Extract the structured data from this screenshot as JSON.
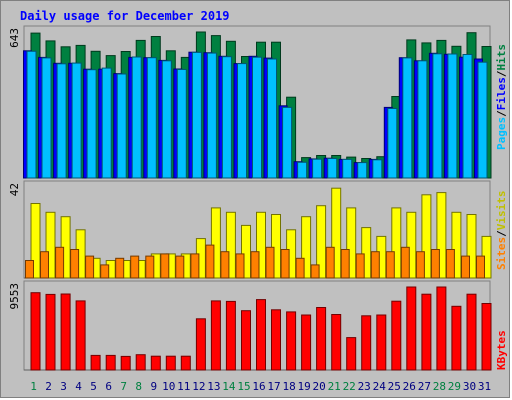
{
  "chart_data": {
    "type": "bar",
    "title": "Daily usage for December 2019",
    "categories": [
      "1",
      "2",
      "3",
      "4",
      "5",
      "6",
      "7",
      "8",
      "9",
      "10",
      "11",
      "12",
      "13",
      "14",
      "15",
      "16",
      "17",
      "18",
      "19",
      "20",
      "21",
      "22",
      "23",
      "24",
      "25",
      "26",
      "27",
      "28",
      "29",
      "30",
      "31"
    ],
    "weekend_days": [
      "1",
      "7",
      "8",
      "14",
      "15",
      "21",
      "22",
      "28",
      "29"
    ],
    "panels": [
      {
        "name": "hits-files-pages",
        "max_label": "643",
        "ylim": [
          0,
          643
        ],
        "side_labels": [
          "Pages",
          "Files",
          "Hits"
        ],
        "series": [
          {
            "name": "Hits",
            "color": "#008040",
            "values": [
              638,
              604,
              578,
              584,
              558,
              539,
              557,
              606,
              623,
              560,
              531,
              643,
              627,
              602,
              535,
              598,
              598,
              356,
              90,
              99,
              99,
              92,
              86,
              94,
              359,
              608,
              595,
              606,
              580,
              640,
              579
            ]
          },
          {
            "name": "Files",
            "color": "#0000ff",
            "values": [
              560,
              531,
              505,
              505,
              479,
              479,
              460,
              531,
              530,
              518,
              480,
              554,
              552,
              536,
              504,
              536,
              528,
              318,
              72,
              84,
              87,
              82,
              68,
              82,
              311,
              530,
              516,
              549,
              545,
              532,
              524
            ]
          },
          {
            "name": "Pages",
            "color": "#00c0ff",
            "values": [
              558,
              529,
              503,
              506,
              477,
              484,
              458,
              533,
              530,
              516,
              478,
              553,
              550,
              534,
              504,
              532,
              524,
              311,
              69,
              83,
              86,
              82,
              68,
              80,
              306,
              529,
              516,
              547,
              546,
              544,
              510
            ]
          }
        ]
      },
      {
        "name": "visits-sites",
        "max_label": "42",
        "ylim": [
          0,
          42
        ],
        "side_labels": [
          "Sites",
          "Visits"
        ],
        "series": [
          {
            "name": "Visits",
            "color": "#ffff00",
            "values": [
              34,
              30,
              28,
              22,
              9,
              8,
              8,
              8,
              11,
              11,
              11,
              18,
              32,
              30,
              24,
              30,
              29,
              22,
              28,
              33,
              41,
              32,
              23,
              19,
              32,
              30,
              38,
              39,
              30,
              29,
              19
            ]
          },
          {
            "name": "Sites",
            "color": "#ff8000",
            "values": [
              8,
              12,
              14,
              13,
              10,
              6,
              9,
              10,
              10,
              11,
              10,
              11,
              15,
              12,
              11,
              12,
              14,
              13,
              9,
              6,
              14,
              13,
              11,
              12,
              12,
              14,
              12,
              13,
              13,
              10,
              10
            ]
          }
        ]
      },
      {
        "name": "kbytes",
        "max_label": "9553",
        "ylim": [
          0,
          9553
        ],
        "side_labels": [
          "KBytes"
        ],
        "series": [
          {
            "name": "KBytes",
            "color": "#ff0000",
            "values": [
              8900,
              8700,
              8750,
              7950,
              1680,
              1680,
              1560,
              1760,
              1590,
              1590,
              1590,
              5890,
              7950,
              7900,
              6830,
              8100,
              6930,
              6690,
              6330,
              7190,
              6390,
              3730,
              6240,
              6330,
              7920,
              9553,
              8730,
              9553,
              7330,
              8730,
              7650
            ]
          }
        ]
      }
    ]
  }
}
